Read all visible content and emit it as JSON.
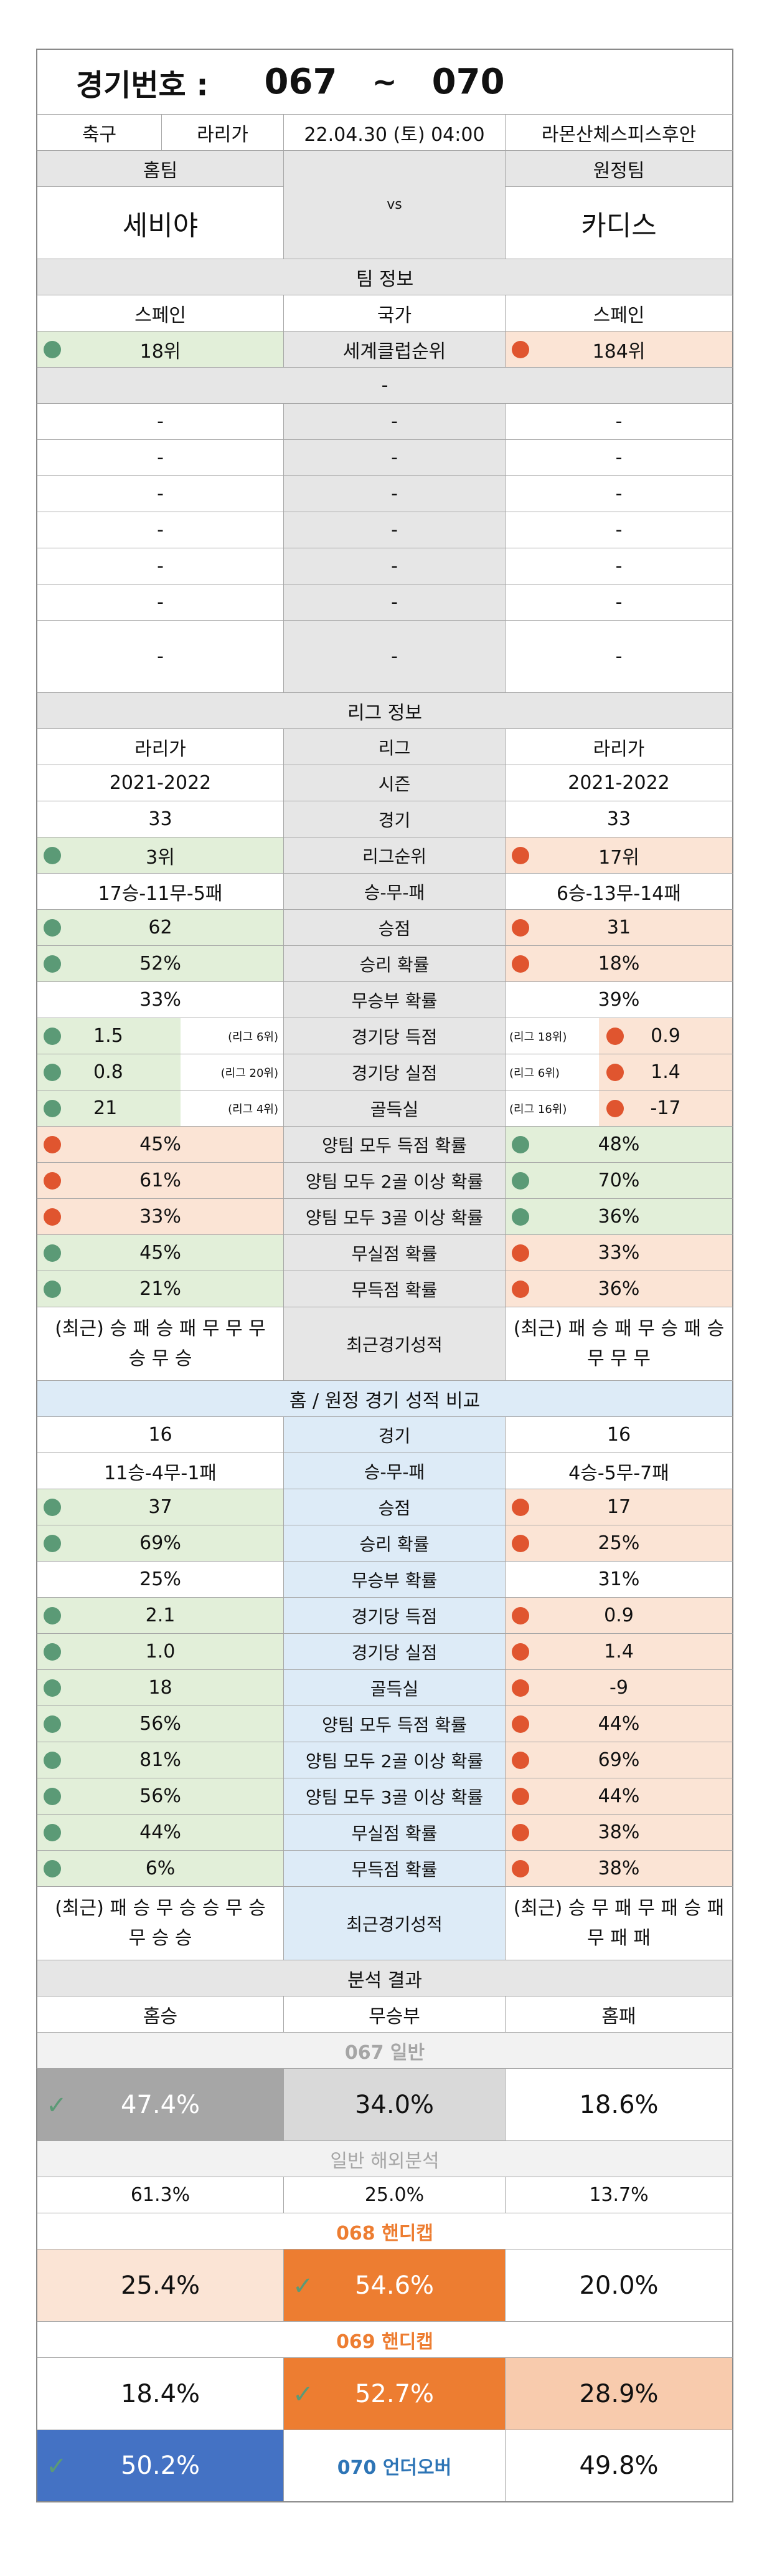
{
  "header": {
    "label": "경기번호 :",
    "start": "067",
    "tilde": "~",
    "end": "070"
  },
  "match": {
    "sport": "축구",
    "league": "라리가",
    "datetime": "22.04.30 (토) 04:00",
    "stadium": "라몬산체스피스후안"
  },
  "teams": {
    "home_label": "홈팀",
    "away_label": "원정팀",
    "home": "세비야",
    "away": "카디스",
    "vs": "vs"
  },
  "team_info": {
    "title": "팀 정보",
    "country_label": "국가",
    "home_country": "스페인",
    "away_country": "스페인",
    "rank_label": "세계클럽순위",
    "home_rank": "18위",
    "away_rank": "184위",
    "sep": "-",
    "rows": [
      {
        "home": "-",
        "label": "-",
        "away": "-"
      },
      {
        "home": "-",
        "label": "-",
        "away": "-"
      },
      {
        "home": "-",
        "label": "-",
        "away": "-"
      },
      {
        "home": "-",
        "label": "-",
        "away": "-"
      },
      {
        "home": "-",
        "label": "-",
        "away": "-"
      },
      {
        "home": "-",
        "label": "-",
        "away": "-"
      },
      {
        "home": "-",
        "label": "-",
        "away": "-"
      }
    ]
  },
  "league_info": {
    "title": "리그 정보",
    "rows": [
      {
        "home": "라리가",
        "label": "리그",
        "away": "라리가"
      },
      {
        "home": "2021-2022",
        "label": "시즌",
        "away": "2021-2022"
      },
      {
        "home": "33",
        "label": "경기",
        "away": "33"
      },
      {
        "home": "3위",
        "label": "리그순위",
        "away": "17위",
        "hc": "green",
        "ac": "red"
      },
      {
        "home": "17승-11무-5패",
        "label": "승-무-패",
        "away": "6승-13무-14패"
      },
      {
        "home": "62",
        "label": "승점",
        "away": "31",
        "hc": "green",
        "ac": "red"
      },
      {
        "home": "52%",
        "label": "승리 확률",
        "away": "18%",
        "hc": "green",
        "ac": "red"
      },
      {
        "home": "33%",
        "label": "무승부 확률",
        "away": "39%"
      },
      {
        "home": "1.5",
        "hr": "(리그 6위)",
        "label": "경기당 득점",
        "away": "0.9",
        "ar": "(리그 18위)",
        "hc": "green",
        "ac": "red"
      },
      {
        "home": "0.8",
        "hr": "(리그 20위)",
        "label": "경기당 실점",
        "away": "1.4",
        "ar": "(리그 6위)",
        "hc": "green",
        "ac": "red"
      },
      {
        "home": "21",
        "hr": "(리그 4위)",
        "label": "골득실",
        "away": "-17",
        "ar": "(리그 16위)",
        "hc": "green",
        "ac": "red"
      },
      {
        "home": "45%",
        "label": "양팀 모두 득점 확률",
        "away": "48%",
        "hc": "red",
        "ac": "green"
      },
      {
        "home": "61%",
        "label": "양팀 모두 2골 이상 확률",
        "away": "70%",
        "hc": "red",
        "ac": "green"
      },
      {
        "home": "33%",
        "label": "양팀 모두 3골 이상 확률",
        "away": "36%",
        "hc": "red",
        "ac": "green"
      },
      {
        "home": "45%",
        "label": "무실점 확률",
        "away": "33%",
        "hc": "green",
        "ac": "red"
      },
      {
        "home": "21%",
        "label": "무득점 확률",
        "away": "36%",
        "hc": "green",
        "ac": "red"
      }
    ],
    "recent_label": "최근경기성적",
    "recent_home": "(최근) 승 패 승 패 무 무 무 승 무 승",
    "recent_away": "(최근) 패 승 패 무 승 패 승 무 무 무"
  },
  "homeaway": {
    "title": "홈 / 원정 경기 성적 비교",
    "rows": [
      {
        "home": "16",
        "label": "경기",
        "away": "16"
      },
      {
        "home": "11승-4무-1패",
        "label": "승-무-패",
        "away": "4승-5무-7패"
      },
      {
        "home": "37",
        "label": "승점",
        "away": "17",
        "hc": "green",
        "ac": "red"
      },
      {
        "home": "69%",
        "label": "승리 확률",
        "away": "25%",
        "hc": "green",
        "ac": "red"
      },
      {
        "home": "25%",
        "label": "무승부 확률",
        "away": "31%"
      },
      {
        "home": "2.1",
        "label": "경기당 득점",
        "away": "0.9",
        "hc": "green",
        "ac": "red"
      },
      {
        "home": "1.0",
        "label": "경기당 실점",
        "away": "1.4",
        "hc": "green",
        "ac": "red"
      },
      {
        "home": "18",
        "label": "골득실",
        "away": "-9",
        "hc": "green",
        "ac": "red"
      },
      {
        "home": "56%",
        "label": "양팀 모두 득점 확률",
        "away": "44%",
        "hc": "green",
        "ac": "red"
      },
      {
        "home": "81%",
        "label": "양팀 모두 2골 이상 확률",
        "away": "69%",
        "hc": "green",
        "ac": "red"
      },
      {
        "home": "56%",
        "label": "양팀 모두 3골 이상 확률",
        "away": "44%",
        "hc": "green",
        "ac": "red"
      },
      {
        "home": "44%",
        "label": "무실점 확률",
        "away": "38%",
        "hc": "green",
        "ac": "red"
      },
      {
        "home": "6%",
        "label": "무득점 확률",
        "away": "38%",
        "hc": "green",
        "ac": "red"
      }
    ],
    "recent_label": "최근경기성적",
    "recent_home": "(최근) 패 승 무 승 승 무 승 무 승 승",
    "recent_away": "(최근) 승 무 패 무 패 승 패 무 패 패"
  },
  "analysis": {
    "title": "분석 결과",
    "col_home": "홈승",
    "col_draw": "무승부",
    "col_away": "홈패",
    "general_title": "067 일반",
    "general": {
      "home": "47.4%",
      "draw": "34.0%",
      "away": "18.6%"
    },
    "overseas_title": "일반 해외분석",
    "overseas": {
      "home": "61.3%",
      "draw": "25.0%",
      "away": "13.7%"
    },
    "h068_title": "068 핸디캡",
    "h068": {
      "home": "25.4%",
      "draw": "54.6%",
      "away": "20.0%"
    },
    "h069_title": "069 핸디캡",
    "h069": {
      "home": "18.4%",
      "draw": "52.7%",
      "away": "28.9%"
    },
    "uo070_title": "070 언더오버",
    "uo070": {
      "under": "50.2%",
      "over": "49.8%"
    },
    "check": "✓"
  },
  "colors": {
    "green": "#5b9a76",
    "red": "#e0552f",
    "orange": "#ed7d31",
    "blue": "#4472c4",
    "gray": "#a6a6a6"
  }
}
